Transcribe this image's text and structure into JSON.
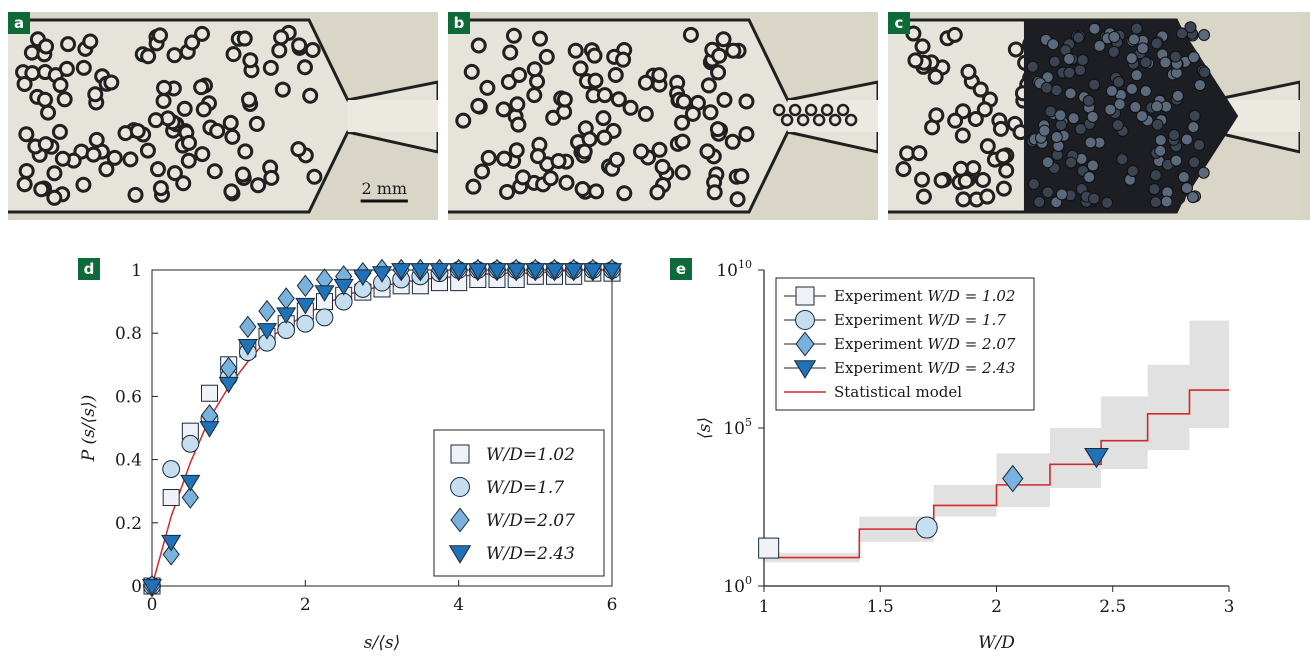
{
  "photos": [
    {
      "label": "a",
      "scale_bar": "2 mm",
      "state": "dilute"
    },
    {
      "label": "b",
      "scale_bar": "",
      "state": "clogging"
    },
    {
      "label": "c",
      "scale_bar": "",
      "state": "clogged"
    }
  ],
  "chart_data": [
    {
      "label": "d",
      "type": "scatter",
      "xlabel": "s/⟨s⟩",
      "ylabel": "P (s/⟨s⟩)",
      "xlim": [
        0,
        6
      ],
      "ylim": [
        0,
        1
      ],
      "xticks": [
        0,
        2,
        4,
        6
      ],
      "yticks": [
        0,
        0.2,
        0.4,
        0.6,
        0.8,
        1
      ],
      "xtick_labels": [
        "0",
        "2",
        "4",
        "6"
      ],
      "ytick_labels": [
        "0",
        "0.2",
        "0.4",
        "0.6",
        "0.8",
        "1"
      ],
      "grid": false,
      "legend_position": "bottom-right",
      "series": [
        {
          "name": "W/D=1.02",
          "marker": "square",
          "color": "#f0f2f8",
          "x": [
            0,
            0.25,
            0.5,
            0.75,
            1,
            1.25,
            1.5,
            1.75,
            2,
            2.25,
            2.5,
            2.75,
            3,
            3.25,
            3.5,
            3.75,
            4,
            4.25,
            4.5,
            4.75,
            5,
            5.25,
            5.5,
            5.75,
            6
          ],
          "y": [
            0,
            0.28,
            0.49,
            0.61,
            0.7,
            0.75,
            0.79,
            0.83,
            0.87,
            0.9,
            0.92,
            0.93,
            0.94,
            0.95,
            0.95,
            0.96,
            0.96,
            0.97,
            0.97,
            0.97,
            0.98,
            0.98,
            0.98,
            0.99,
            0.99
          ]
        },
        {
          "name": "W/D=1.7",
          "marker": "circle",
          "color": "#c6dff0",
          "x": [
            0,
            0.25,
            0.5,
            0.75,
            1,
            1.25,
            1.5,
            1.75,
            2,
            2.25,
            2.5,
            2.75,
            3,
            3.25,
            3.5,
            3.75,
            4,
            4.25,
            4.5,
            4.75,
            5,
            5.25,
            5.5,
            5.75,
            6
          ],
          "y": [
            0,
            0.37,
            0.45,
            0.53,
            0.66,
            0.74,
            0.77,
            0.81,
            0.83,
            0.85,
            0.9,
            0.94,
            0.96,
            0.97,
            0.98,
            0.99,
            1,
            1,
            1,
            1,
            1,
            1,
            1,
            1,
            1
          ]
        },
        {
          "name": "W/D=2.07",
          "marker": "diamond",
          "color": "#79b2dc",
          "x": [
            0,
            0.25,
            0.5,
            0.75,
            1,
            1.25,
            1.5,
            1.75,
            2,
            2.25,
            2.5,
            2.75,
            3,
            3.25,
            3.5,
            3.75,
            4,
            4.25,
            4.5,
            4.75,
            5,
            5.25,
            5.5,
            5.75,
            6
          ],
          "y": [
            0,
            0.1,
            0.28,
            0.54,
            0.69,
            0.82,
            0.87,
            0.91,
            0.95,
            0.97,
            0.98,
            0.99,
            1,
            1,
            1,
            1,
            1,
            1,
            1,
            1,
            1,
            1,
            1,
            1,
            1
          ]
        },
        {
          "name": "W/D=2.43",
          "marker": "triangle-down",
          "color": "#1f72b8",
          "x": [
            0,
            0.25,
            0.5,
            0.75,
            1,
            1.25,
            1.5,
            1.75,
            2,
            2.25,
            2.5,
            2.75,
            3,
            3.25,
            3.5,
            3.75,
            4,
            4.25,
            4.5,
            4.75,
            5,
            5.25,
            5.5,
            5.75,
            6
          ],
          "y": [
            0,
            0.14,
            0.33,
            0.5,
            0.64,
            0.76,
            0.81,
            0.86,
            0.89,
            0.93,
            0.95,
            0.98,
            0.99,
            1,
            1,
            1,
            1,
            1,
            1,
            1,
            1,
            1,
            1,
            1,
            1
          ]
        }
      ],
      "model_curve": {
        "color": "#d12a2a",
        "x": [
          0,
          0.25,
          0.5,
          0.75,
          1,
          1.25,
          1.5,
          2,
          2.5,
          3,
          3.5,
          4,
          4.5,
          5,
          5.5,
          6
        ],
        "y": [
          0,
          0.22,
          0.39,
          0.53,
          0.63,
          0.71,
          0.78,
          0.86,
          0.92,
          0.95,
          0.97,
          0.98,
          0.99,
          0.99,
          1,
          1
        ]
      }
    },
    {
      "label": "e",
      "type": "scatter",
      "xlabel": "W/D",
      "ylabel": "⟨s⟩",
      "xlim": [
        1,
        3
      ],
      "ylim_log10": [
        0,
        10
      ],
      "y_scale": "log",
      "xticks": [
        1,
        1.5,
        2,
        2.5,
        3
      ],
      "xtick_labels": [
        "1",
        "1.5",
        "2",
        "2.5",
        "3"
      ],
      "yticks": [
        {
          "base": "10",
          "exp": "0",
          "log": 0
        },
        {
          "base": "10",
          "exp": "5",
          "log": 5
        },
        {
          "base": "10",
          "exp": "10",
          "log": 10
        }
      ],
      "grid": false,
      "legend_position": "top-left",
      "points": [
        {
          "legend": "Experiment",
          "name": "W/D = 1.02",
          "marker": "square",
          "color": "#f0f2f8",
          "x": 1.02,
          "log10_y": 1.2
        },
        {
          "legend": "Experiment",
          "name": "W/D = 1.7",
          "marker": "circle",
          "color": "#c6dff0",
          "x": 1.7,
          "log10_y": 1.85
        },
        {
          "legend": "Experiment",
          "name": "W/D = 2.07",
          "marker": "diamond",
          "color": "#79b2dc",
          "x": 2.07,
          "log10_y": 3.4
        },
        {
          "legend": "Experiment",
          "name": "W/D = 2.43",
          "marker": "triangle-down",
          "color": "#1f72b8",
          "x": 2.43,
          "log10_y": 4.1
        }
      ],
      "model": {
        "name": "Statistical model",
        "color": "#d12a2a",
        "steps_x": [
          1,
          1.41,
          1.73,
          2,
          2.23,
          2.45,
          2.65,
          2.83,
          3
        ],
        "steps_log10_y": [
          0.9,
          1.8,
          2.55,
          3.2,
          3.85,
          4.6,
          5.45,
          6.2
        ],
        "band_lower_log10": [
          0.75,
          1.4,
          2.2,
          2.5,
          3.1,
          3.7,
          4.3,
          5.0
        ],
        "band_upper_log10": [
          1.05,
          2.2,
          3.2,
          4.2,
          5.0,
          6.0,
          7.0,
          8.4
        ]
      }
    }
  ]
}
